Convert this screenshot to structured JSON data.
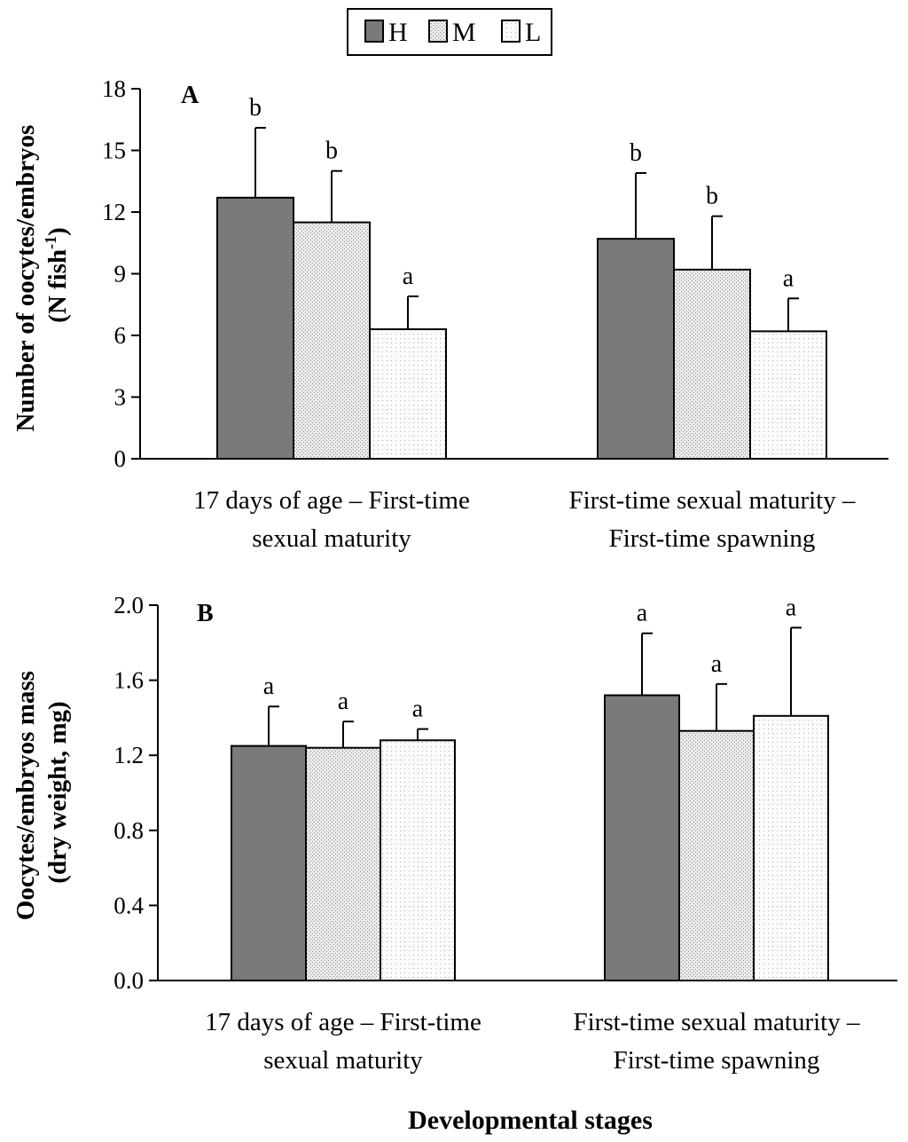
{
  "legend": [
    {
      "key": "H",
      "label": "H"
    },
    {
      "key": "M",
      "label": "M"
    },
    {
      "key": "L",
      "label": "L"
    }
  ],
  "colors": {
    "H": "#7a7a7a",
    "M": "#e6e6e6",
    "L": "#f6f6f6"
  },
  "x_axis_title": "Developmental stages",
  "chart_data": [
    {
      "type": "bar",
      "panel": "A",
      "categories": [
        "17 days of age – First-time sexual maturity",
        "First-time sexual maturity – First-time spawning"
      ],
      "category_lines": [
        [
          "17 days of age – First-time",
          "sexual maturity"
        ],
        [
          "First-time sexual maturity –",
          "First-time spawning"
        ]
      ],
      "series": [
        {
          "name": "H",
          "values": [
            12.7,
            10.7
          ],
          "errors": [
            3.4,
            3.2
          ],
          "letters": [
            "b",
            "b"
          ]
        },
        {
          "name": "M",
          "values": [
            11.5,
            9.2
          ],
          "errors": [
            2.5,
            2.6
          ],
          "letters": [
            "b",
            "b"
          ]
        },
        {
          "name": "L",
          "values": [
            6.3,
            6.2
          ],
          "errors": [
            1.6,
            1.6
          ],
          "letters": [
            "a",
            "a"
          ]
        }
      ],
      "ylabel_lines": [
        "Number of oocytes/embryos",
        "(N fish",
        "-1",
        ")"
      ],
      "ylim": [
        0,
        18
      ],
      "yticks": [
        "0",
        "3",
        "6",
        "9",
        "12",
        "15",
        "18"
      ]
    },
    {
      "type": "bar",
      "panel": "B",
      "categories": [
        "17 days of age – First-time sexual maturity",
        "First-time sexual maturity – First-time spawning"
      ],
      "category_lines": [
        [
          "17 days of age – First-time",
          "sexual maturity"
        ],
        [
          "First-time sexual maturity –",
          "First-time spawning"
        ]
      ],
      "series": [
        {
          "name": "H",
          "values": [
            1.25,
            1.52
          ],
          "errors": [
            0.21,
            0.33
          ],
          "letters": [
            "a",
            "a"
          ]
        },
        {
          "name": "M",
          "values": [
            1.24,
            1.33
          ],
          "errors": [
            0.14,
            0.25
          ],
          "letters": [
            "a",
            "a"
          ]
        },
        {
          "name": "L",
          "values": [
            1.28,
            1.41
          ],
          "errors": [
            0.06,
            0.47
          ],
          "letters": [
            "a",
            "a"
          ]
        }
      ],
      "ylabel_lines": [
        "Oocytes/embryos mass",
        "(dry weight, mg)"
      ],
      "ylim": [
        0,
        2.0
      ],
      "yticks": [
        "0.0",
        "0.4",
        "0.8",
        "1.2",
        "1.6",
        "2.0"
      ]
    }
  ]
}
